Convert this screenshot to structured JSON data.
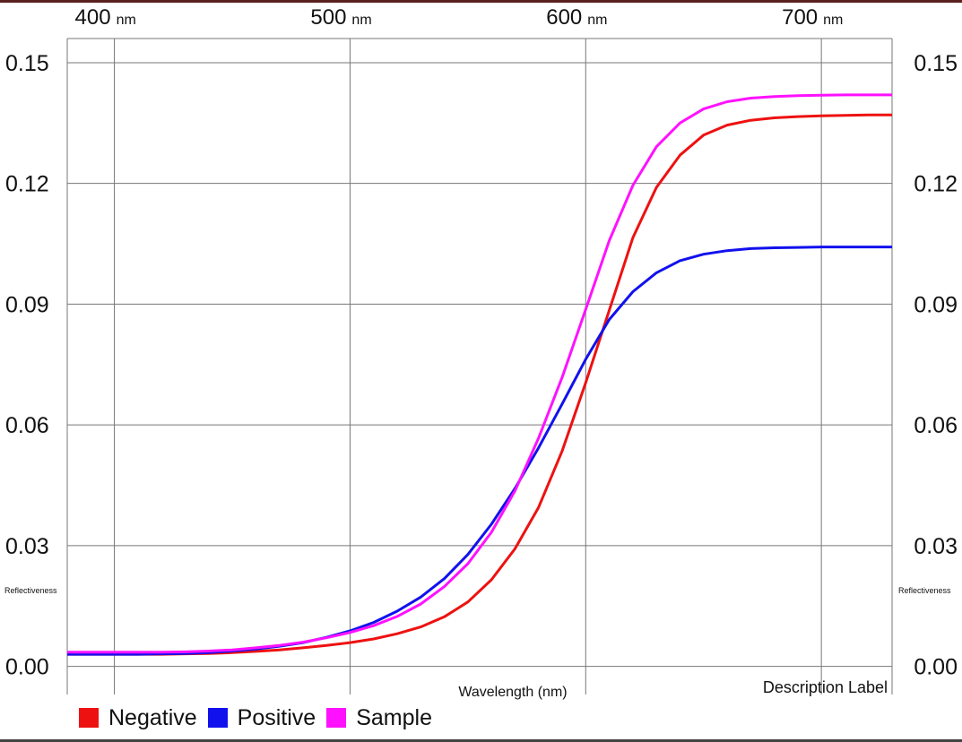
{
  "chart_data": {
    "type": "line",
    "title": "",
    "xlabel": "Wavelength (nm)",
    "ylabel": "Reflectiveness",
    "annotation": "Description Label",
    "xlim": [
      380,
      730
    ],
    "ylim": [
      -0.007,
      0.156
    ],
    "x_ticks": [
      {
        "value": 400,
        "number": "400",
        "unit": "nm"
      },
      {
        "value": 500,
        "number": "500",
        "unit": "nm"
      },
      {
        "value": 600,
        "number": "600",
        "unit": "nm"
      },
      {
        "value": 700,
        "number": "700",
        "unit": "nm"
      }
    ],
    "y_ticks": [
      {
        "value": 0.0,
        "label": "0.00"
      },
      {
        "value": 0.03,
        "label": "0.03"
      },
      {
        "value": 0.06,
        "label": "0.06"
      },
      {
        "value": 0.09,
        "label": "0.09"
      },
      {
        "value": 0.12,
        "label": "0.12"
      },
      {
        "value": 0.15,
        "label": "0.15"
      }
    ],
    "grid": true,
    "legend_position": "bottom-left",
    "x": [
      380,
      390,
      400,
      410,
      420,
      430,
      440,
      450,
      460,
      470,
      480,
      490,
      500,
      510,
      520,
      530,
      540,
      550,
      560,
      570,
      580,
      590,
      600,
      610,
      620,
      630,
      640,
      650,
      660,
      670,
      680,
      690,
      700,
      710,
      720,
      730
    ],
    "series": [
      {
        "name": "Negative",
        "color": "#ee1111",
        "values": [
          0.003,
          0.003,
          0.003,
          0.003,
          0.003,
          0.0031,
          0.0032,
          0.0034,
          0.0037,
          0.0041,
          0.0046,
          0.0052,
          0.0059,
          0.0068,
          0.0081,
          0.0098,
          0.0123,
          0.016,
          0.0215,
          0.0292,
          0.0395,
          0.0535,
          0.0705,
          0.0885,
          0.1065,
          0.119,
          0.127,
          0.132,
          0.1345,
          0.1357,
          0.1363,
          0.1366,
          0.1368,
          0.1369,
          0.137,
          0.137
        ]
      },
      {
        "name": "Positive",
        "color": "#1111ee",
        "values": [
          0.003,
          0.003,
          0.003,
          0.003,
          0.0031,
          0.0032,
          0.0034,
          0.0038,
          0.0043,
          0.005,
          0.0059,
          0.0072,
          0.0088,
          0.0109,
          0.0137,
          0.0172,
          0.0218,
          0.0278,
          0.0353,
          0.0442,
          0.0543,
          0.0652,
          0.0763,
          0.0862,
          0.0931,
          0.0978,
          0.1008,
          0.1024,
          0.1033,
          0.1038,
          0.104,
          0.1041,
          0.1042,
          0.1042,
          0.1042,
          0.1042
        ]
      },
      {
        "name": "Sample",
        "color": "#ff11ff",
        "values": [
          0.0035,
          0.0035,
          0.0035,
          0.0035,
          0.0035,
          0.0036,
          0.0038,
          0.0041,
          0.0046,
          0.0052,
          0.006,
          0.0071,
          0.0084,
          0.0101,
          0.0124,
          0.0155,
          0.0198,
          0.0255,
          0.0333,
          0.0436,
          0.0567,
          0.0718,
          0.0887,
          0.1058,
          0.1195,
          0.1291,
          0.135,
          0.1385,
          0.1403,
          0.1412,
          0.1416,
          0.1418,
          0.1419,
          0.142,
          0.142,
          0.142
        ]
      }
    ]
  }
}
